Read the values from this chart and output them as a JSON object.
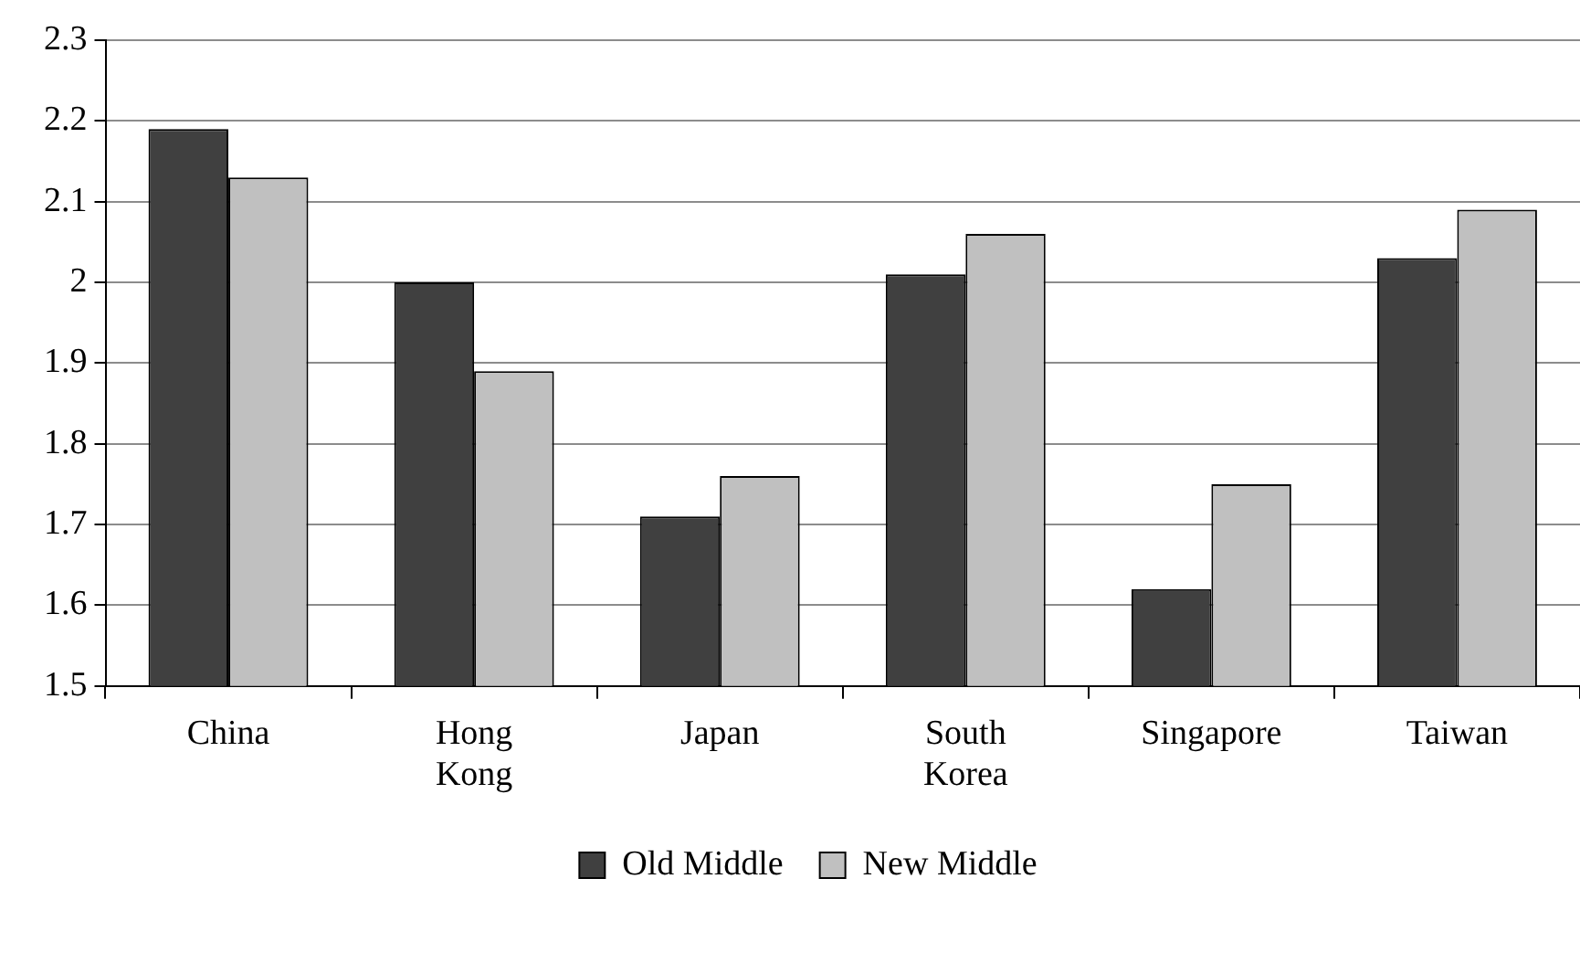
{
  "chart_data": {
    "type": "bar",
    "categories": [
      "China",
      "Hong Kong",
      "Japan",
      "South Korea",
      "Singapore",
      "Taiwan"
    ],
    "series": [
      {
        "name": "Old Middle",
        "color": "#404040",
        "values": [
          2.19,
          2.0,
          1.71,
          2.01,
          1.62,
          2.03
        ]
      },
      {
        "name": "New Middle",
        "color": "#c0c0c0",
        "values": [
          2.13,
          1.89,
          1.76,
          2.06,
          1.75,
          2.09
        ]
      }
    ],
    "ylim": [
      1.5,
      2.3
    ],
    "yticks": [
      1.5,
      1.6,
      1.7,
      1.8,
      1.9,
      2,
      2.1,
      2.2,
      2.3
    ],
    "grid": "y",
    "legend": "bottom"
  }
}
